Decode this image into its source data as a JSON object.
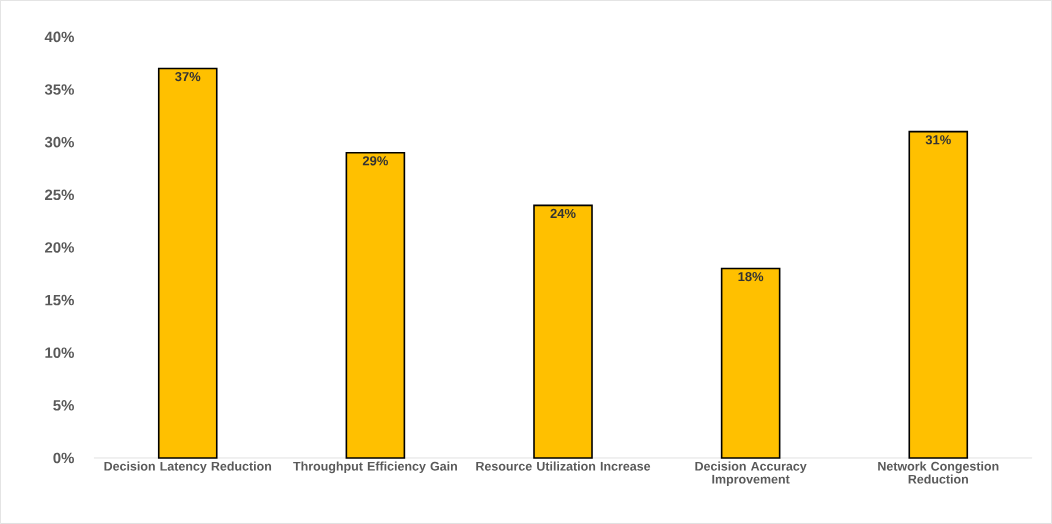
{
  "chart_data": {
    "type": "bar",
    "categories": [
      "Decision Latency Reduction",
      "Throughput Efficiency Gain",
      "Resource Utilization Increase",
      "Decision Accuracy Improvement",
      "Network Congestion Reduction"
    ],
    "values": [
      37,
      29,
      24,
      18,
      31
    ],
    "value_labels": [
      "37%",
      "29%",
      "24%",
      "18%",
      "31%"
    ],
    "color": "#ffc000",
    "ylim": [
      0,
      40
    ],
    "yticks": [
      {
        "value": 0,
        "label": "0%"
      },
      {
        "value": 5,
        "label": "5%"
      },
      {
        "value": 10,
        "label": "10%"
      },
      {
        "value": 15,
        "label": "15%"
      },
      {
        "value": 20,
        "label": "20%"
      },
      {
        "value": 25,
        "label": "25%"
      },
      {
        "value": 30,
        "label": "30%"
      },
      {
        "value": 35,
        "label": "35%"
      },
      {
        "value": 40,
        "label": "40%"
      }
    ],
    "grid": false
  }
}
